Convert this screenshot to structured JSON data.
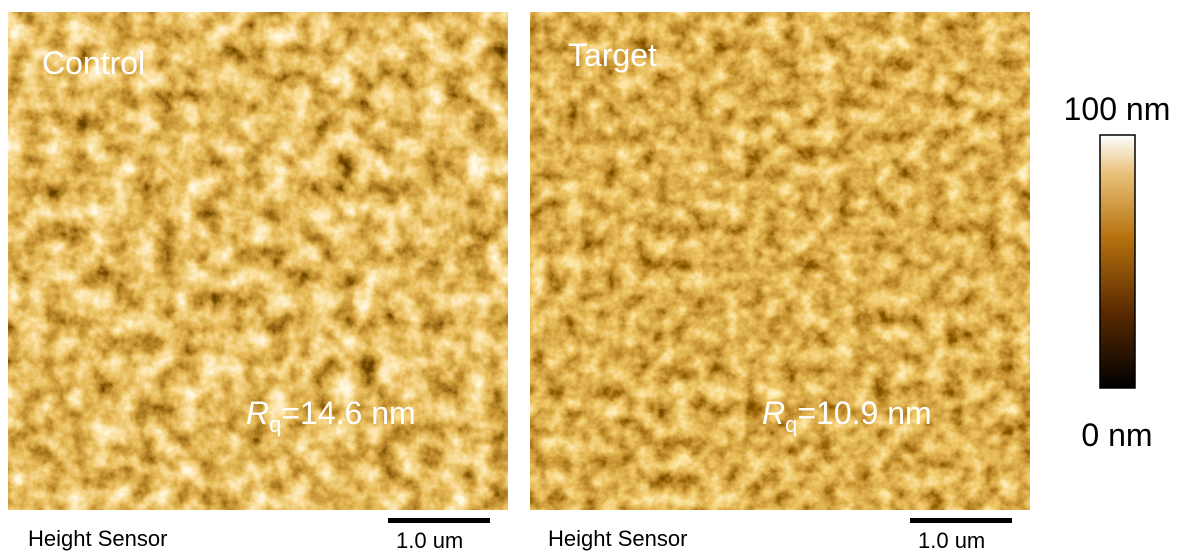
{
  "panels": [
    {
      "label": "Control",
      "rq": {
        "symbol": "R",
        "subscript": "q",
        "text": "=14.6 nm"
      },
      "sensor": "Height Sensor",
      "scale_bar": "1.0 um"
    },
    {
      "label": "Target",
      "rq": {
        "symbol": "R",
        "subscript": "q",
        "text": "=10.9 nm"
      },
      "sensor": "Height Sensor",
      "scale_bar": "1.0 um"
    }
  ],
  "colorbar": {
    "max_label": "100 nm",
    "min_label": "0 nm"
  }
}
